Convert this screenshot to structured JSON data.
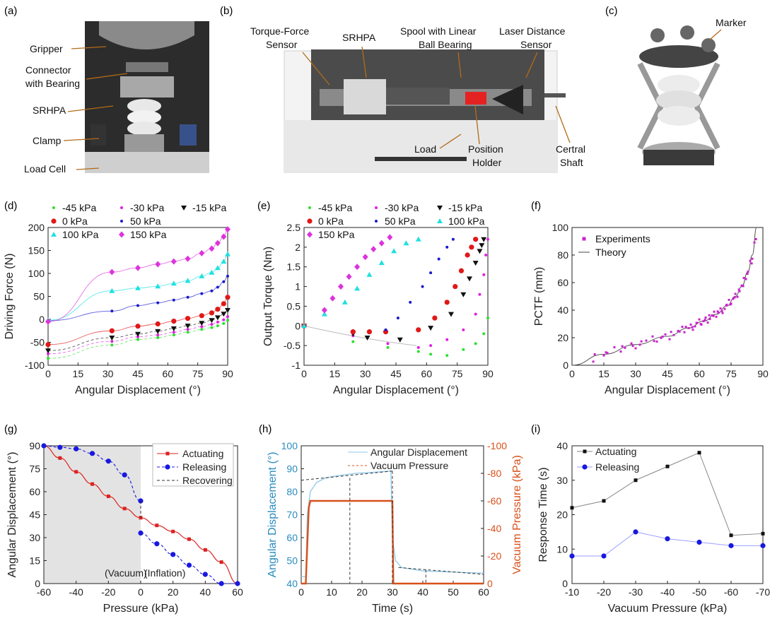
{
  "panel_letters": [
    "(a)",
    "(b)",
    "(c)",
    "(d)",
    "(e)",
    "(f)",
    "(g)",
    "(h)",
    "(i)"
  ],
  "photo_a": {
    "labels": [
      "Gripper",
      "Connector",
      "with Bearing",
      "SRHPA",
      "Clamp",
      "Load Cell"
    ]
  },
  "photo_b": {
    "labels": [
      "Torque-Force",
      "Sensor",
      "SRHPA",
      "Spool with Linear",
      "Ball Bearing",
      "Laser Distance",
      "Sensor",
      "Load",
      "Position",
      "Holder",
      "Certral",
      "Shaft"
    ]
  },
  "photo_c": {
    "labels": [
      "Marker"
    ]
  },
  "colors": {
    "n45": "#2ee02e",
    "n30": "#e020e0",
    "n15": "#111111",
    "p0": "#e01818",
    "p50": "#1a1ad0",
    "p100": "#20e0e0",
    "p150": "#dd33dd",
    "magenta": "#cc22cc",
    "red": "#dd2222",
    "blue": "#1818e0",
    "h_left": "#2a8cc0",
    "h_right": "#d8501a",
    "gray": "#333333"
  },
  "chart_data": [
    {
      "id": "d",
      "type": "scatter",
      "xlabel": "Angular Displacement (°)",
      "ylabel": "Driving Force (N)",
      "xlim": [
        0,
        90
      ],
      "ylim": [
        -100,
        200
      ],
      "xticks": [
        "0",
        "15",
        "30",
        "45",
        "60",
        "75",
        "90"
      ],
      "yticks": [
        "-100",
        "-50",
        "0",
        "50",
        "100",
        "150",
        "200"
      ],
      "legend": [
        "-45 kPa",
        "-30 kPa",
        "-15 kPa",
        "0 kPa",
        "50 kPa",
        "100 kPa",
        "150 kPa"
      ],
      "series": [
        {
          "name": "-45 kPa",
          "x": [
            0,
            32,
            45,
            55,
            63,
            70,
            77,
            82,
            85,
            88,
            90
          ],
          "y": [
            -85,
            -56,
            -44,
            -40,
            -34,
            -28,
            -22,
            -18,
            -14,
            -9,
            -2
          ]
        },
        {
          "name": "-30 kPa",
          "x": [
            0,
            32,
            45,
            55,
            63,
            70,
            77,
            82,
            85,
            88,
            90
          ],
          "y": [
            -75,
            -48,
            -38,
            -34,
            -28,
            -22,
            -16,
            -11,
            -6,
            -1,
            6
          ]
        },
        {
          "name": "-15 kPa",
          "x": [
            0,
            32,
            45,
            55,
            63,
            70,
            77,
            82,
            85,
            88,
            90
          ],
          "y": [
            -68,
            -40,
            -32,
            -26,
            -20,
            -14,
            -8,
            -2,
            4,
            12,
            20
          ]
        },
        {
          "name": "0 kPa",
          "x": [
            0,
            32,
            45,
            55,
            63,
            70,
            77,
            82,
            85,
            88,
            90
          ],
          "y": [
            -55,
            -25,
            -15,
            -10,
            -4,
            2,
            8,
            14,
            22,
            34,
            48
          ]
        },
        {
          "name": "50 kPa",
          "x": [
            0,
            32,
            45,
            55,
            63,
            70,
            77,
            82,
            85,
            88,
            90
          ],
          "y": [
            -3,
            18,
            30,
            36,
            42,
            48,
            56,
            62,
            70,
            82,
            94
          ]
        },
        {
          "name": "100 kPa",
          "x": [
            0,
            32,
            45,
            55,
            63,
            70,
            77,
            82,
            85,
            88,
            90
          ],
          "y": [
            -2,
            62,
            68,
            72,
            78,
            84,
            94,
            102,
            112,
            126,
            142
          ]
        },
        {
          "name": "150 kPa",
          "x": [
            0,
            32,
            45,
            55,
            63,
            70,
            77,
            82,
            85,
            88,
            90
          ],
          "y": [
            -5,
            103,
            112,
            120,
            126,
            132,
            144,
            154,
            166,
            180,
            196
          ]
        }
      ]
    },
    {
      "id": "e",
      "type": "scatter",
      "xlabel": "Angular Displacement (°)",
      "ylabel": "Output Torque (Nm)",
      "xlim": [
        0,
        90
      ],
      "ylim": [
        -1,
        2.5
      ],
      "xticks": [
        "0",
        "15",
        "30",
        "45",
        "60",
        "75",
        "90"
      ],
      "yticks": [
        "-1",
        "-0.5",
        "0",
        "0.5",
        "1",
        "1.5",
        "2",
        "2.5"
      ],
      "legend": [
        "-45 kPa",
        "-30 kPa",
        "-15 kPa",
        "0 kPa",
        "50 kPa",
        "100 kPa",
        "150 kPa"
      ],
      "series": [
        {
          "name": "-45 kPa",
          "x": [
            0,
            24,
            41,
            56,
            62,
            70,
            78,
            84,
            88,
            90
          ],
          "y": [
            0,
            -0.4,
            -0.55,
            -0.65,
            -0.72,
            -0.75,
            -0.6,
            -0.45,
            -0.2,
            0.2
          ]
        },
        {
          "name": "-30 kPa",
          "x": [
            0,
            24,
            41,
            56,
            62,
            70,
            78,
            84,
            86,
            88,
            89,
            90
          ],
          "y": [
            0,
            -0.25,
            -0.45,
            -0.55,
            -0.5,
            -0.35,
            -0.1,
            0.3,
            0.8,
            1.3,
            1.8,
            2.2
          ]
        },
        {
          "name": "-15 kPa",
          "x": [
            0,
            24,
            31,
            47,
            62,
            72,
            78,
            81,
            84,
            86,
            87,
            88
          ],
          "y": [
            0,
            -0.2,
            -0.3,
            -0.35,
            -0.05,
            0.3,
            0.8,
            1.2,
            1.6,
            1.9,
            2.05,
            2.2
          ]
        },
        {
          "name": "0 kPa",
          "x": [
            0,
            24,
            32,
            40,
            56,
            64,
            70,
            74,
            77,
            80,
            82,
            84
          ],
          "y": [
            0,
            -0.15,
            -0.15,
            -0.15,
            -0.1,
            0.2,
            0.6,
            1.0,
            1.4,
            1.8,
            2.0,
            2.2
          ]
        },
        {
          "name": "50 kPa",
          "x": [
            0,
            40,
            46,
            52,
            58,
            62,
            66,
            70,
            73
          ],
          "y": [
            0,
            -0.1,
            0.2,
            0.6,
            1.0,
            1.35,
            1.7,
            2.0,
            2.2
          ]
        },
        {
          "name": "100 kPa",
          "x": [
            0,
            10,
            20,
            26,
            32,
            38,
            44,
            50,
            56
          ],
          "y": [
            0,
            0.3,
            0.6,
            0.95,
            1.3,
            1.6,
            1.9,
            2.1,
            2.2
          ]
        },
        {
          "name": "150 kPa",
          "x": [
            10,
            14,
            18,
            22,
            26,
            30,
            34,
            38,
            42
          ],
          "y": [
            0.4,
            0.7,
            1.0,
            1.25,
            1.5,
            1.75,
            1.95,
            2.1,
            2.25
          ]
        }
      ]
    },
    {
      "id": "f",
      "type": "scatter",
      "xlabel": "Angular Displacement (°)",
      "ylabel": "PCTF (mm)",
      "xlim": [
        0,
        90
      ],
      "ylim": [
        0,
        100
      ],
      "xticks": [
        "0",
        "15",
        "30",
        "45",
        "60",
        "75",
        "90"
      ],
      "yticks": [
        "0",
        "20",
        "40",
        "60",
        "80",
        "100"
      ],
      "legend": [
        "Experiments",
        "Theory"
      ],
      "theory": {
        "x": [
          0,
          15,
          30,
          45,
          55,
          62,
          68,
          73,
          77,
          80,
          83,
          85,
          87
        ],
        "y": [
          0,
          8,
          15,
          21,
          27,
          32,
          37,
          43,
          50,
          57,
          68,
          80,
          100
        ]
      }
    },
    {
      "id": "g",
      "type": "line",
      "xlabel": "Pressure (kPa)",
      "ylabel": "Angular Displacement (°)",
      "xlim": [
        -60,
        60
      ],
      "ylim": [
        0,
        90
      ],
      "xticks": [
        "-60",
        "-40",
        "-20",
        "0",
        "20",
        "40",
        "60"
      ],
      "yticks": [
        "0",
        "15",
        "30",
        "45",
        "60",
        "75",
        "90"
      ],
      "legend": [
        "Actuating",
        "Releasing",
        "Recovering"
      ],
      "shade_label": "(Vacuum)",
      "inflate_label": "(Inflation)",
      "series": [
        {
          "name": "Actuating",
          "x": [
            -60,
            -50,
            -40,
            -30,
            -20,
            -10,
            0,
            10,
            20,
            30,
            40,
            50,
            60
          ],
          "y": [
            90,
            82,
            73,
            65,
            57,
            49,
            43,
            38,
            34,
            29,
            22,
            14,
            0
          ]
        },
        {
          "name": "Releasing",
          "x": [
            -60,
            -50,
            -40,
            -30,
            -20,
            -10,
            0,
            0,
            10,
            20,
            30,
            40,
            50,
            60
          ],
          "y": [
            90,
            89,
            88,
            85,
            80,
            71,
            54,
            33,
            26,
            19,
            12,
            6,
            0,
            0
          ]
        },
        {
          "name": "Recovering",
          "x": [
            0,
            0
          ],
          "y": [
            54,
            43
          ]
        }
      ]
    },
    {
      "id": "h",
      "type": "line",
      "xlabel": "Time (s)",
      "ylabel": "Angular Displacement (°)",
      "ylabel2": "Vacuum Pressure (kPa)",
      "xlim": [
        0,
        60
      ],
      "ylim": [
        40,
        100
      ],
      "ylim2": [
        0,
        -100
      ],
      "xticks": [
        "0",
        "10",
        "20",
        "30",
        "40",
        "50",
        "60"
      ],
      "yticks": [
        "40",
        "50",
        "60",
        "70",
        "80",
        "90",
        "100"
      ],
      "yticks2": [
        "0",
        "-20",
        "-40",
        "-60",
        "-80",
        "-100"
      ],
      "legend": [
        "Angular Displacement",
        "Vacuum Pressure"
      ],
      "series": [
        {
          "name": "Angular Displacement",
          "x": [
            0,
            1.5,
            2,
            3,
            5,
            8,
            12,
            18,
            24,
            29.5,
            30,
            31,
            33,
            40,
            50,
            60
          ],
          "y": [
            43,
            43,
            70,
            80,
            84,
            86,
            87,
            88,
            88.5,
            89,
            60,
            50,
            47,
            45.5,
            45,
            44.5
          ]
        },
        {
          "name": "Vacuum Pressure",
          "x": [
            0,
            1.5,
            2.5,
            3,
            30,
            30.3,
            60
          ],
          "y": [
            0,
            0,
            -55,
            -60,
            -60,
            0,
            0
          ]
        }
      ]
    },
    {
      "id": "i",
      "type": "line",
      "xlabel": "Vacuum Pressure (kPa)",
      "ylabel": "Response Time (s)",
      "ylim": [
        0,
        40
      ],
      "categories": [
        "-10",
        "-20",
        "-30",
        "-40",
        "-50",
        "-60",
        "-70"
      ],
      "yticks": [
        "0",
        "10",
        "20",
        "30",
        "40"
      ],
      "legend": [
        "Actuating",
        "Releasing"
      ],
      "series": [
        {
          "name": "Actuating",
          "values": [
            22,
            24,
            30,
            34,
            38,
            14,
            14.5
          ]
        },
        {
          "name": "Releasing",
          "values": [
            8,
            8,
            15,
            13,
            12,
            11,
            11
          ]
        }
      ]
    }
  ]
}
